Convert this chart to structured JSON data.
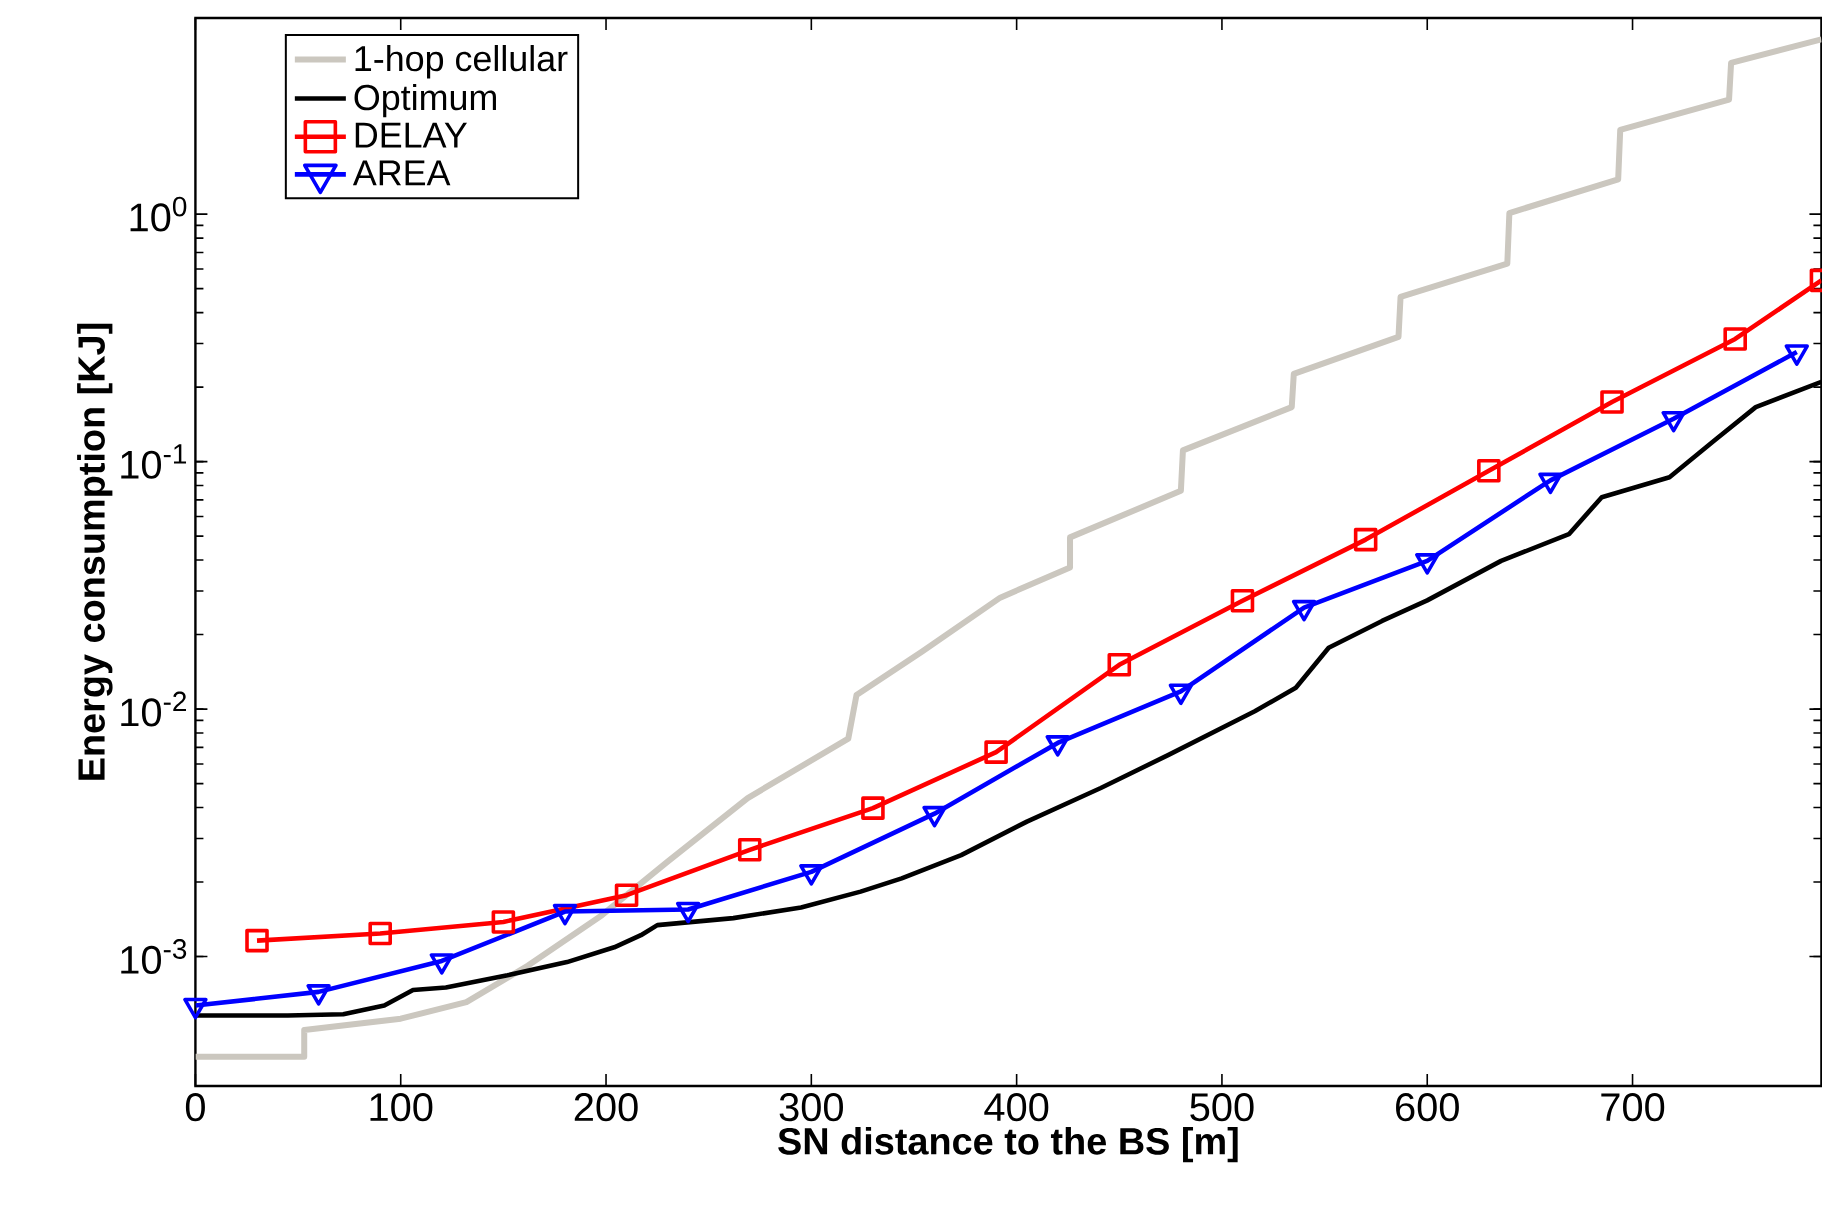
{
  "chart_data": {
    "type": "line",
    "xlabel": "SN distance to the BS [m]",
    "ylabel": "Energy consumption [KJ]",
    "xlim": [
      0,
      792
    ],
    "ylim": [
      0.0003,
      6.2
    ],
    "log": "y",
    "legend": "top left",
    "xticks": [
      0,
      100,
      200,
      300,
      400,
      500,
      600,
      700
    ],
    "yticks": [
      {
        "value": 0.001,
        "label": "10$^{-3}$"
      },
      {
        "value": 0.01,
        "label": "10$^{-2}$"
      },
      {
        "value": 0.1,
        "label": "10$^{-1}$"
      },
      {
        "value": 1,
        "label": "10$^{0}$"
      }
    ],
    "series": [
      {
        "name": "1-hop cellular",
        "color": "#cbc7bf",
        "marker": "none",
        "x": [
          0,
          53,
          53,
          100,
          132,
          162,
          198,
          230,
          269,
          318,
          322,
          354,
          392,
          426,
          426,
          480,
          481,
          534,
          535,
          586,
          587,
          639,
          640,
          693,
          694,
          747,
          748,
          792
        ],
        "values": [
          0.000394,
          0.000394,
          0.000505,
          0.000561,
          0.000655,
          0.00092,
          0.00147,
          0.00242,
          0.00437,
          0.0076,
          0.0114,
          0.0171,
          0.0282,
          0.0373,
          0.0494,
          0.0762,
          0.111,
          0.166,
          0.226,
          0.319,
          0.463,
          0.631,
          1.01,
          1.38,
          2.19,
          2.9,
          4.08,
          5.08
        ]
      },
      {
        "name": "Optimum",
        "color": "#000000",
        "marker": "none",
        "x": [
          0,
          45,
          72,
          92,
          106,
          122,
          152,
          181,
          204,
          217,
          225,
          262,
          295,
          324,
          344,
          373,
          405,
          441,
          474,
          516,
          536,
          552,
          578,
          600,
          636,
          669,
          685,
          718,
          740,
          760,
          792
        ],
        "values": [
          0.000578,
          0.000578,
          0.000585,
          0.000634,
          0.000733,
          0.00075,
          0.00084,
          0.00095,
          0.00109,
          0.00122,
          0.00134,
          0.00143,
          0.00158,
          0.00183,
          0.00207,
          0.00257,
          0.00351,
          0.0048,
          0.00653,
          0.0098,
          0.0122,
          0.0177,
          0.0227,
          0.0275,
          0.0397,
          0.0509,
          0.0718,
          0.0865,
          0.122,
          0.166,
          0.21
        ]
      },
      {
        "name": "DELAY",
        "color": "#ff0000",
        "marker": "square",
        "x": [
          30,
          90,
          150,
          210,
          270,
          330,
          390,
          450,
          510,
          570,
          630,
          690,
          750,
          792
        ],
        "values": [
          0.00116,
          0.00124,
          0.00138,
          0.00177,
          0.0027,
          0.00398,
          0.0067,
          0.0151,
          0.0274,
          0.0484,
          0.0918,
          0.174,
          0.313,
          0.54
        ]
      },
      {
        "name": "AREA",
        "color": "#0000ff",
        "marker": "triangle",
        "x": [
          0,
          60,
          120,
          180,
          240,
          300,
          360,
          420,
          480,
          540,
          600,
          660,
          720,
          780
        ],
        "values": [
          0.000634,
          0.00072,
          0.00096,
          0.00152,
          0.00155,
          0.0022,
          0.00378,
          0.0073,
          0.0118,
          0.0257,
          0.0397,
          0.084,
          0.149,
          0.277
        ]
      }
    ]
  }
}
